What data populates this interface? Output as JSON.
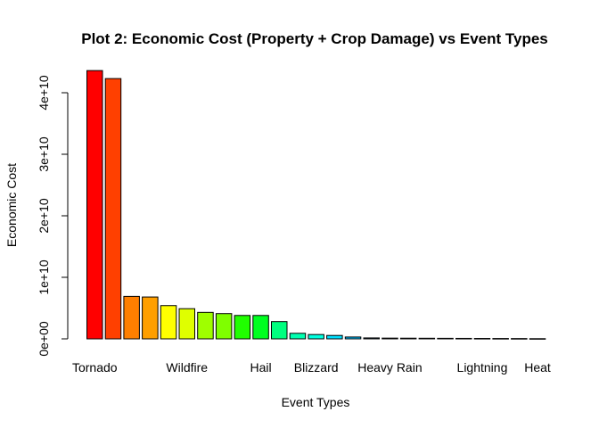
{
  "chart_data": {
    "type": "bar",
    "title": "Plot 2: Economic Cost (Property + Crop Damage) vs Event Types",
    "xlabel": "Event Types",
    "ylabel": "Economic Cost",
    "ylim": [
      0,
      45000000000
    ],
    "yticks": [
      {
        "value": 0,
        "label": "0e+00"
      },
      {
        "value": 10000000000,
        "label": "1e+10"
      },
      {
        "value": 20000000000,
        "label": "2e+10"
      },
      {
        "value": 30000000000,
        "label": "3e+10"
      },
      {
        "value": 40000000000,
        "label": "4e+10"
      }
    ],
    "shown_category_labels": [
      {
        "index": 0,
        "label": "Tornado"
      },
      {
        "index": 5,
        "label": "Wildfire"
      },
      {
        "index": 9,
        "label": "Hail"
      },
      {
        "index": 12,
        "label": "Blizzard"
      },
      {
        "index": 16,
        "label": "Heavy Rain"
      },
      {
        "index": 21,
        "label": "Lightning"
      },
      {
        "index": 24,
        "label": "Heat"
      }
    ],
    "values": [
      43600000000,
      42300000000,
      6900000000,
      6800000000,
      5400000000,
      4900000000,
      4300000000,
      4100000000,
      3800000000,
      3800000000,
      2800000000,
      900000000,
      700000000,
      550000000,
      300000000,
      150000000,
      120000000,
      110000000,
      100000000,
      90000000,
      80000000,
      70000000,
      60000000,
      50000000,
      30000000
    ],
    "colors": [
      "#FF0000",
      "#FF4000",
      "#FF7F00",
      "#FF9F00",
      "#FFFF00",
      "#DFFF00",
      "#9FFF00",
      "#7FFF00",
      "#20FF00",
      "#00FF20",
      "#00FF7F",
      "#00FFAF",
      "#00FFDF",
      "#00DFFF",
      "#00BFFF",
      "#009FFF",
      "#007FFF",
      "#0060FF",
      "#0040FF",
      "#0020FF",
      "#2000FF",
      "#4000FF",
      "#6000FF",
      "#8000FF",
      "#A000FF"
    ],
    "grid": false,
    "legend": "none"
  }
}
